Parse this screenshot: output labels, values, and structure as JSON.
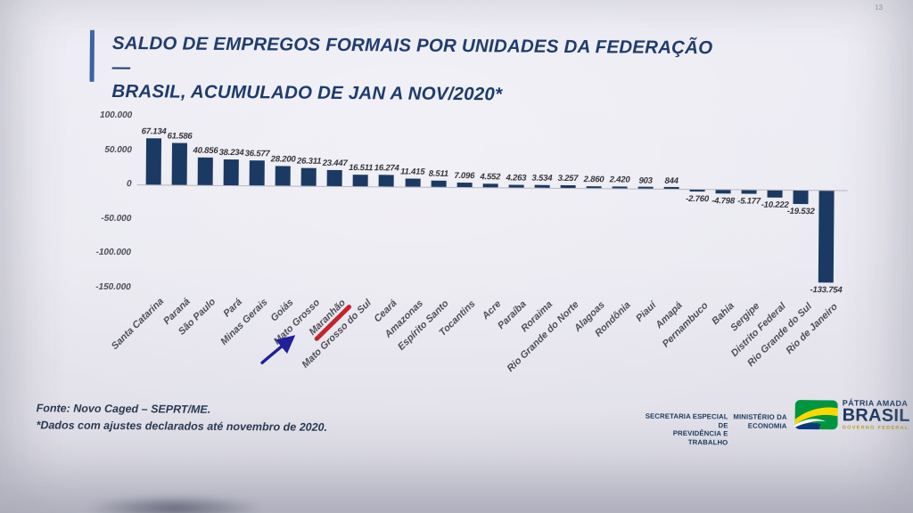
{
  "page": {
    "number": "13"
  },
  "title": {
    "line1": "SALDO DE EMPREGOS FORMAIS POR UNIDADES DA FEDERAÇÃO —",
    "line2": "BRASIL, ACUMULADO DE JAN A NOV/2020*"
  },
  "chart_data": {
    "type": "bar",
    "title": "Saldo de empregos formais por unidades da federação — Brasil, acumulado de jan a nov/2020",
    "xlabel": "",
    "ylabel": "",
    "ylim": [
      -150000,
      100000
    ],
    "grid": false,
    "legend": false,
    "bar_color": "#1b3a63",
    "categories": [
      "Santa Catarina",
      "Paraná",
      "São Paulo",
      "Pará",
      "Minas Gerais",
      "Goiás",
      "Mato Grosso",
      "Maranhão",
      "Mato Grosso do Sul",
      "Ceará",
      "Amazonas",
      "Espírito Santo",
      "Tocantins",
      "Acre",
      "Paraíba",
      "Roraima",
      "Rio Grande do Norte",
      "Alagoas",
      "Rondônia",
      "Piauí",
      "Amapá",
      "Pernambuco",
      "Bahia",
      "Sergipe",
      "Distrito Federal",
      "Rio Grande do Sul",
      "Rio de Janeiro"
    ],
    "values": [
      67134,
      61586,
      40856,
      38234,
      36577,
      28200,
      26311,
      23447,
      16511,
      16274,
      11415,
      8511,
      7096,
      4552,
      4263,
      3534,
      3257,
      2860,
      2420,
      903,
      844,
      -2760,
      -4798,
      -5177,
      -10222,
      -19532,
      -133754
    ],
    "value_labels": [
      "67.134",
      "61.586",
      "40.856",
      "38.234",
      "36.577",
      "28.200",
      "26.311",
      "23.447",
      "16.511",
      "16.274",
      "11.415",
      "8.511",
      "7.096",
      "4.552",
      "4.263",
      "3.534",
      "3.257",
      "2.860",
      "2.420",
      "903",
      "844",
      "-2.760",
      "-4.798",
      "-5.177",
      "-10.222",
      "-19.532",
      "-133.754"
    ],
    "y_ticks": [
      {
        "value": 100000,
        "label": "100.000"
      },
      {
        "value": 50000,
        "label": "50.000"
      },
      {
        "value": 0,
        "label": "0"
      },
      {
        "value": -50000,
        "label": "-50.000"
      },
      {
        "value": -100000,
        "label": "-100.000"
      },
      {
        "value": -150000,
        "label": "-150.000"
      }
    ],
    "annotations": {
      "highlighted_category": "Maranhão",
      "underline_color": "#c4232a",
      "arrow_color": "#20209a"
    }
  },
  "footer": {
    "source_line1": "Fonte: Novo Caged – SEPRT/ME.",
    "source_line2": "*Dados com ajustes declarados até novembro de 2020.",
    "org1_line1": "SECRETARIA ESPECIAL DE",
    "org1_line2": "PREVIDÊNCIA E TRABALHO",
    "org2_line1": "MINISTÉRIO DA",
    "org2_line2": "ECONOMIA",
    "brand_top": "PÁTRIA AMADA",
    "brand_main": "BRASIL",
    "brand_sub": "GOVERNO FEDERAL"
  }
}
